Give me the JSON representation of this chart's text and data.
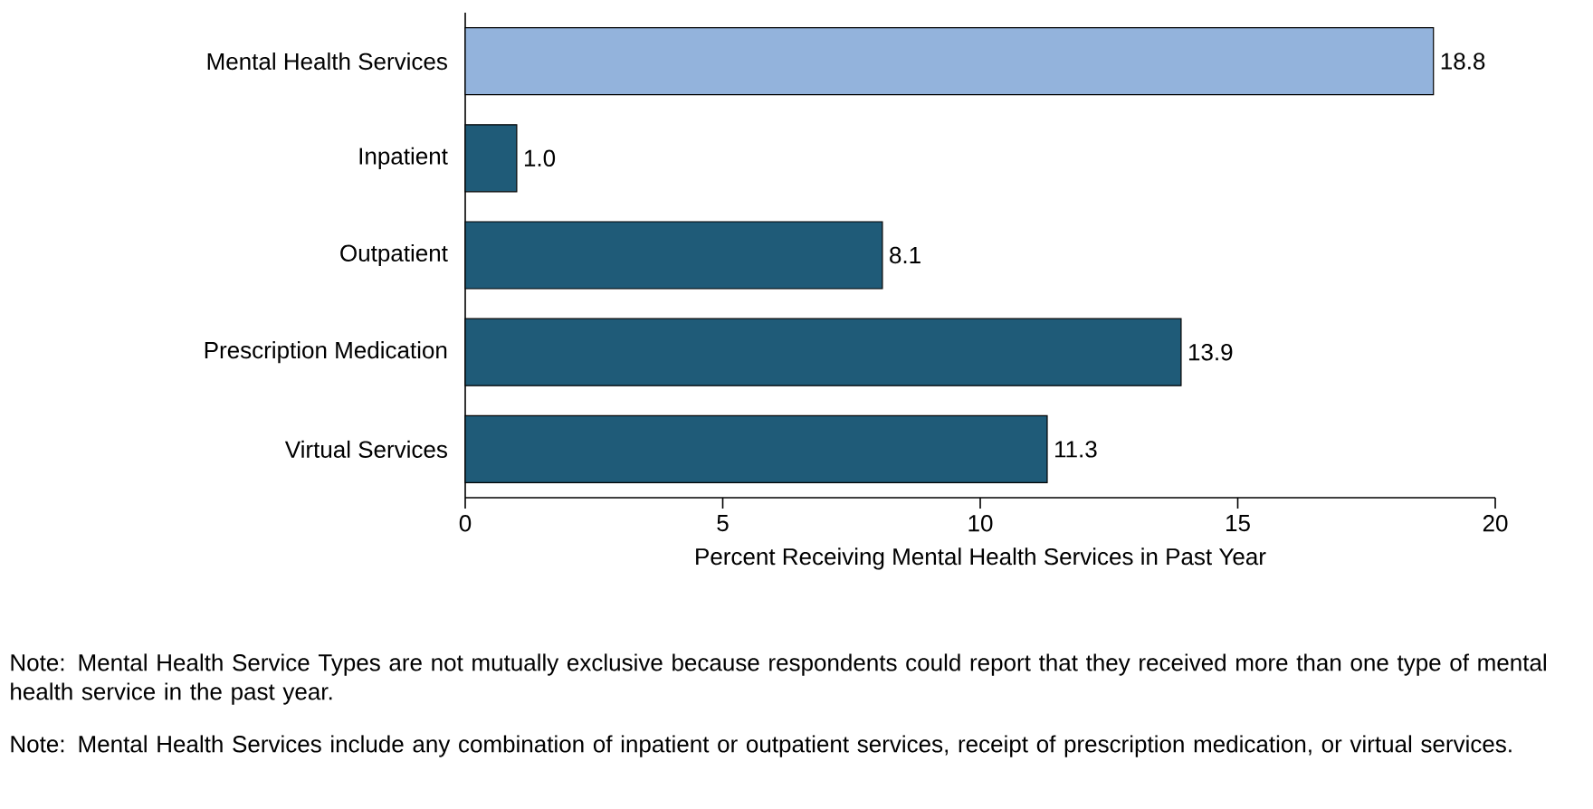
{
  "chart_data": {
    "type": "bar",
    "orientation": "horizontal",
    "categories": [
      "Mental Health Services",
      "Inpatient",
      "Outpatient",
      "Prescription Medication",
      "Virtual Services"
    ],
    "values": [
      18.8,
      1.0,
      8.1,
      13.9,
      11.3
    ],
    "colors": [
      "#93b3dc",
      "#1f5b78",
      "#1f5b78",
      "#1f5b78",
      "#1f5b78"
    ],
    "xlim": [
      0,
      20
    ],
    "xticks": [
      0,
      5,
      10,
      15,
      20
    ],
    "xlabel": "Percent Receiving Mental Health Services in Past Year",
    "value_labels": [
      "18.8",
      "1.0",
      "8.1",
      "13.9",
      "11.3"
    ],
    "grid": false,
    "annotations": [
      "Note: Mental Health Service Types are not mutually exclusive because respondents could report that they received more than one type of mental health service in the past year.",
      "Note: Mental Health Services include any combination of inpatient or outpatient services, receipt of prescription medication, or virtual services."
    ]
  }
}
